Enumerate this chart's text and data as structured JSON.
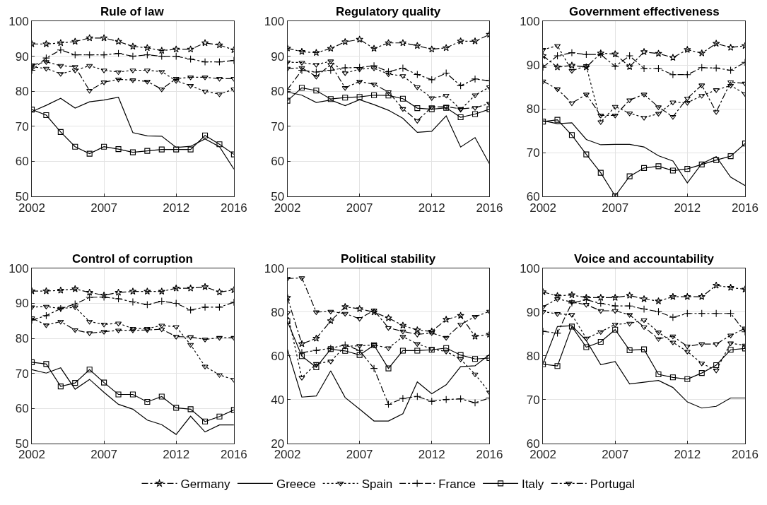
{
  "chart_data": [
    {
      "type": "line",
      "title": "Rule of law",
      "x": [
        2002,
        2003,
        2004,
        2005,
        2006,
        2007,
        2008,
        2009,
        2010,
        2011,
        2012,
        2013,
        2014,
        2015,
        2016
      ],
      "xlim": [
        2002,
        2016
      ],
      "xticks": [
        2002,
        2007,
        2012,
        2016
      ],
      "ylim": [
        50,
        100
      ],
      "yticks": [
        50,
        60,
        70,
        80,
        90,
        100
      ],
      "grid": true,
      "legend": "bottom",
      "series": [
        {
          "name": "Germany",
          "color": "#000000",
          "marker": "star",
          "line_style": "dashed",
          "values": [
            93.5,
            93.5,
            93.8,
            94.2,
            95.2,
            95.2,
            94.2,
            92.8,
            92.4,
            91.6,
            92,
            92,
            93.8,
            93.2,
            91.8
          ]
        },
        {
          "name": "Greece",
          "color": "#000000",
          "marker": "none",
          "line_style": "solid",
          "values": [
            74.2,
            76,
            78,
            75.2,
            77,
            77.5,
            78.3,
            68.2,
            67.3,
            67.2,
            64,
            64.3,
            66.4,
            64.2,
            57.8
          ]
        },
        {
          "name": "Spain",
          "color": "#000000",
          "marker": "triangle",
          "line_style": "dotted",
          "values": [
            87,
            86.5,
            85,
            86,
            87.3,
            86,
            85.5,
            86,
            86,
            85.6,
            83,
            81.6,
            80,
            79.2,
            80.6
          ]
        },
        {
          "name": "France",
          "color": "#000000",
          "marker": "cross",
          "line_style": "dashed",
          "values": [
            86,
            89.5,
            91.8,
            90.4,
            90.4,
            90.4,
            90.8,
            90,
            90.4,
            90,
            90,
            89.2,
            88.4,
            88.4,
            88.8
          ]
        },
        {
          "name": "Italy",
          "color": "#000000",
          "marker": "square",
          "line_style": "solid",
          "values": [
            74.8,
            73.2,
            68.4,
            64.2,
            62.2,
            64.2,
            63.5,
            62.6,
            63,
            63.4,
            63.4,
            63.4,
            67.4,
            64.9,
            62
          ]
        },
        {
          "name": "Portugal",
          "color": "#000000",
          "marker": "triangle",
          "line_style": "dashed",
          "values": [
            87.5,
            88.4,
            87.3,
            87,
            80.2,
            82.6,
            83.4,
            83.2,
            82.8,
            80.6,
            83.6,
            84,
            84,
            83.6,
            83.6
          ]
        }
      ]
    },
    {
      "type": "line",
      "title": "Regulatory quality",
      "x": [
        2002,
        2003,
        2004,
        2005,
        2006,
        2007,
        2008,
        2009,
        2010,
        2011,
        2012,
        2013,
        2014,
        2015,
        2016
      ],
      "xlim": [
        2002,
        2016
      ],
      "xticks": [
        2002,
        2007,
        2012,
        2016
      ],
      "ylim": [
        50,
        100
      ],
      "yticks": [
        50,
        60,
        70,
        80,
        90,
        100
      ],
      "grid": true,
      "series": [
        {
          "name": "Germany",
          "color": "#000000",
          "marker": "star",
          "line_style": "dashed",
          "values": [
            92.3,
            91.3,
            91,
            92.2,
            94.1,
            94.8,
            92.2,
            93.8,
            93.8,
            93,
            92,
            92.4,
            94.3,
            94.3,
            96.2
          ]
        },
        {
          "name": "Greece",
          "color": "#000000",
          "marker": "none",
          "line_style": "solid",
          "values": [
            79.8,
            78.9,
            76.8,
            77.5,
            75.9,
            77.6,
            76.2,
            74.6,
            72.3,
            68.3,
            68.6,
            73,
            64.1,
            66.8,
            59.3
          ]
        },
        {
          "name": "Spain",
          "color": "#000000",
          "marker": "triangle",
          "line_style": "dotted",
          "values": [
            88.3,
            88.2,
            87.6,
            88.6,
            85.2,
            86.3,
            86.6,
            84.9,
            84.4,
            81.2,
            78.1,
            78.8,
            74.8,
            78.9,
            81.2
          ]
        },
        {
          "name": "France",
          "color": "#000000",
          "marker": "cross",
          "line_style": "dashed",
          "values": [
            80.5,
            86,
            85.5,
            86,
            86.7,
            86.8,
            87.3,
            85.6,
            86.6,
            84.8,
            83.3,
            85.2,
            81.6,
            83.5,
            83
          ]
        },
        {
          "name": "Italy",
          "color": "#000000",
          "marker": "square",
          "line_style": "solid",
          "values": [
            77.3,
            81,
            80.2,
            77.8,
            78.2,
            78.4,
            78.9,
            78.8,
            77.9,
            75.2,
            74.9,
            75.3,
            72.6,
            73.5,
            74.9
          ]
        },
        {
          "name": "Portugal",
          "color": "#000000",
          "marker": "triangle",
          "line_style": "dashed",
          "values": [
            86.5,
            86.7,
            84.2,
            87.6,
            81,
            82.8,
            82,
            79.8,
            75,
            71.6,
            75.5,
            75.6,
            75,
            75.3,
            76.5
          ]
        }
      ]
    },
    {
      "type": "line",
      "title": "Government effectiveness",
      "x": [
        2002,
        2003,
        2004,
        2005,
        2006,
        2007,
        2008,
        2009,
        2010,
        2011,
        2012,
        2013,
        2014,
        2015,
        2016
      ],
      "xlim": [
        2002,
        2016
      ],
      "xticks": [
        2002,
        2007,
        2012,
        2016
      ],
      "ylim": [
        60,
        100
      ],
      "yticks": [
        60,
        70,
        80,
        90,
        100
      ],
      "grid": true,
      "series": [
        {
          "name": "Germany",
          "color": "#000000",
          "marker": "star",
          "line_style": "dashed",
          "values": [
            92.1,
            89.5,
            89.9,
            89.5,
            92.7,
            92.5,
            89.6,
            93,
            92.6,
            91.7,
            93.5,
            92.7,
            94.9,
            94,
            94.4
          ]
        },
        {
          "name": "Greece",
          "color": "#000000",
          "marker": "none",
          "line_style": "solid",
          "values": [
            77.3,
            76.6,
            76.8,
            73,
            71.8,
            71.9,
            71.9,
            71.3,
            69.3,
            68.1,
            63.1,
            67.5,
            69.1,
            64.4,
            62.5
          ]
        },
        {
          "name": "Spain",
          "color": "#000000",
          "marker": "triangle",
          "line_style": "dotted",
          "values": [
            93.5,
            94.4,
            88.7,
            89.8,
            77,
            80.5,
            79,
            78,
            78.9,
            81.5,
            81.4,
            83,
            84.3,
            85.3,
            83.4
          ]
        },
        {
          "name": "France",
          "color": "#000000",
          "marker": "cross",
          "line_style": "dashed",
          "values": [
            89.5,
            92.1,
            92.8,
            92.4,
            92.4,
            89.7,
            92.1,
            89.2,
            89.2,
            87.8,
            87.8,
            89.4,
            89.3,
            88.8,
            90.6
          ]
        },
        {
          "name": "Italy",
          "color": "#000000",
          "marker": "square",
          "line_style": "solid",
          "values": [
            77.1,
            77.5,
            74,
            69.6,
            65.4,
            60.1,
            64.6,
            66.5,
            66.9,
            65.9,
            66.3,
            67.3,
            68.3,
            69.2,
            72.1
          ]
        },
        {
          "name": "Portugal",
          "color": "#000000",
          "marker": "triangle",
          "line_style": "dashed",
          "values": [
            86.3,
            84.5,
            81.3,
            83.3,
            78.5,
            78.5,
            82,
            83.3,
            80.4,
            78.2,
            82.4,
            85.4,
            79.3,
            86.1,
            85.8
          ]
        }
      ]
    },
    {
      "type": "line",
      "title": "Control of corruption",
      "x": [
        2002,
        2003,
        2004,
        2005,
        2006,
        2007,
        2008,
        2009,
        2010,
        2011,
        2012,
        2013,
        2014,
        2015,
        2016
      ],
      "xlim": [
        2002,
        2016
      ],
      "xticks": [
        2002,
        2007,
        2012,
        2016
      ],
      "ylim": [
        50,
        100
      ],
      "yticks": [
        50,
        60,
        70,
        80,
        90,
        100
      ],
      "grid": true,
      "series": [
        {
          "name": "Germany",
          "color": "#000000",
          "marker": "star",
          "line_style": "dashed",
          "values": [
            93.5,
            93.5,
            93.7,
            94.1,
            93.1,
            92.3,
            93.1,
            93.4,
            93.4,
            93.4,
            94.3,
            94.3,
            94.7,
            93.2,
            93.8
          ]
        },
        {
          "name": "Greece",
          "color": "#000000",
          "marker": "none",
          "line_style": "solid",
          "values": [
            71.1,
            70.1,
            71.6,
            65.5,
            68.3,
            64.6,
            61.2,
            59.8,
            56.7,
            55.4,
            52.6,
            57.8,
            53.3,
            55.3,
            55.3
          ]
        },
        {
          "name": "Spain",
          "color": "#000000",
          "marker": "triangle",
          "line_style": "dotted",
          "values": [
            88.9,
            89.1,
            88.5,
            88.9,
            84.8,
            84,
            84.3,
            82.8,
            82.8,
            83.7,
            83.3,
            78.2,
            72,
            69.6,
            68.2
          ]
        },
        {
          "name": "France",
          "color": "#000000",
          "marker": "cross",
          "line_style": "dashed",
          "values": [
            85.2,
            86.5,
            88.5,
            89.8,
            91.7,
            91.8,
            91.3,
            90.4,
            89.6,
            90.6,
            90,
            88.1,
            88.9,
            88.9,
            90.3
          ]
        },
        {
          "name": "Italy",
          "color": "#000000",
          "marker": "square",
          "line_style": "solid",
          "values": [
            73.2,
            72.7,
            66.3,
            67.3,
            71.1,
            67.4,
            64,
            64,
            61.9,
            63.4,
            60.2,
            59.8,
            56.3,
            57.7,
            59.6
          ]
        },
        {
          "name": "Portugal",
          "color": "#000000",
          "marker": "triangle",
          "line_style": "dashed",
          "values": [
            85.8,
            83.8,
            84.8,
            82.4,
            81.5,
            81.9,
            82.3,
            82.3,
            82.4,
            82.6,
            80.5,
            80.4,
            79.7,
            80.2,
            80.2
          ]
        }
      ]
    },
    {
      "type": "line",
      "title": "Political stability",
      "x": [
        2002,
        2003,
        2004,
        2005,
        2006,
        2007,
        2008,
        2009,
        2010,
        2011,
        2012,
        2013,
        2014,
        2015,
        2016
      ],
      "xlim": [
        2002,
        2016
      ],
      "xticks": [
        2002,
        2007,
        2012,
        2016
      ],
      "ylim": [
        20,
        100
      ],
      "yticks": [
        20,
        40,
        60,
        80,
        100
      ],
      "grid": true,
      "series": [
        {
          "name": "Germany",
          "color": "#000000",
          "marker": "star",
          "line_style": "dashed",
          "values": [
            86.6,
            65.5,
            68,
            76,
            82.4,
            81.5,
            80,
            77.3,
            73.9,
            71.8,
            71.2,
            76.6,
            78.4,
            68.9,
            69.8
          ]
        },
        {
          "name": "Greece",
          "color": "#000000",
          "marker": "none",
          "line_style": "solid",
          "values": [
            63,
            41.2,
            41.7,
            53.2,
            41,
            35.7,
            30.3,
            30.3,
            33.6,
            48.1,
            42.7,
            46.8,
            55.1,
            55.5,
            60.6
          ]
        },
        {
          "name": "Spain",
          "color": "#000000",
          "marker": "triangle",
          "line_style": "dotted",
          "values": [
            79.6,
            50.1,
            56.4,
            57.5,
            64.4,
            64.6,
            65,
            63.6,
            68.8,
            65.5,
            63.2,
            62,
            58.5,
            51.6,
            43.4
          ]
        },
        {
          "name": "France",
          "color": "#000000",
          "marker": "cross",
          "line_style": "dashed",
          "values": [
            null,
            61.5,
            62.5,
            63.5,
            65,
            62.5,
            54.3,
            37.9,
            40.6,
            41.5,
            39.3,
            40.1,
            40.4,
            38.6,
            40.8
          ]
        },
        {
          "name": "Italy",
          "color": "#000000",
          "marker": "square",
          "line_style": "solid",
          "values": [
            75.8,
            59.9,
            54.8,
            63.1,
            62.3,
            60.4,
            64.9,
            54.3,
            62.4,
            62.4,
            62.8,
            63.6,
            60.4,
            58.6,
            59
          ]
        },
        {
          "name": "Portugal",
          "color": "#000000",
          "marker": "triangle",
          "line_style": "dashed",
          "values": [
            95.3,
            95.6,
            80,
            80.3,
            79.3,
            77,
            80.8,
            72.8,
            71.2,
            69.8,
            70.5,
            68.3,
            74.4,
            77.9,
            80.3
          ]
        }
      ]
    },
    {
      "type": "line",
      "title": "Voice and accountability",
      "x": [
        2002,
        2003,
        2004,
        2005,
        2006,
        2007,
        2008,
        2009,
        2010,
        2011,
        2012,
        2013,
        2014,
        2015,
        2016
      ],
      "xlim": [
        2002,
        2016
      ],
      "xticks": [
        2002,
        2007,
        2012,
        2016
      ],
      "ylim": [
        60,
        100
      ],
      "yticks": [
        60,
        70,
        80,
        90,
        100
      ],
      "grid": true,
      "series": [
        {
          "name": "Germany",
          "color": "#000000",
          "marker": "star",
          "line_style": "dashed",
          "values": [
            94.6,
            93.7,
            93.9,
            93.3,
            93.3,
            93.3,
            93.8,
            93,
            92.5,
            93.5,
            93.5,
            93.5,
            96.1,
            95.6,
            95.2
          ]
        },
        {
          "name": "Greece",
          "color": "#000000",
          "marker": "none",
          "line_style": "solid",
          "values": [
            78.2,
            86.7,
            86.9,
            83.5,
            78,
            78.7,
            73.6,
            74,
            74.4,
            72.8,
            69.5,
            68.1,
            68.5,
            70.4,
            70.4
          ]
        },
        {
          "name": "Spain",
          "color": "#000000",
          "marker": "triangle",
          "line_style": "dotted",
          "values": [
            90.1,
            89.6,
            89.4,
            84,
            85.5,
            87.2,
            87.4,
            88.2,
            85.4,
            83.1,
            81,
            78.3,
            76.7,
            82.9,
            82.4
          ]
        },
        {
          "name": "France",
          "color": "#000000",
          "marker": "cross",
          "line_style": "dashed",
          "values": [
            85.6,
            85.2,
            92.1,
            92.8,
            92,
            91.4,
            91.4,
            90.7,
            90.1,
            88.8,
            89.7,
            89.7,
            89.7,
            89.7,
            85.5
          ]
        },
        {
          "name": "Italy",
          "color": "#000000",
          "marker": "square",
          "line_style": "solid",
          "values": [
            78.1,
            77.7,
            86.7,
            82,
            83.2,
            86,
            81.3,
            81.5,
            75.8,
            75.1,
            74.7,
            76.1,
            77.9,
            81.4,
            81.7
          ]
        },
        {
          "name": "Portugal",
          "color": "#000000",
          "marker": "triangle",
          "line_style": "dashed",
          "values": [
            91.2,
            93,
            92.3,
            91.7,
            90.3,
            90.3,
            89.4,
            86.6,
            83.9,
            84.5,
            82.2,
            82.7,
            82.7,
            84.7,
            86.3
          ]
        }
      ]
    }
  ]
}
